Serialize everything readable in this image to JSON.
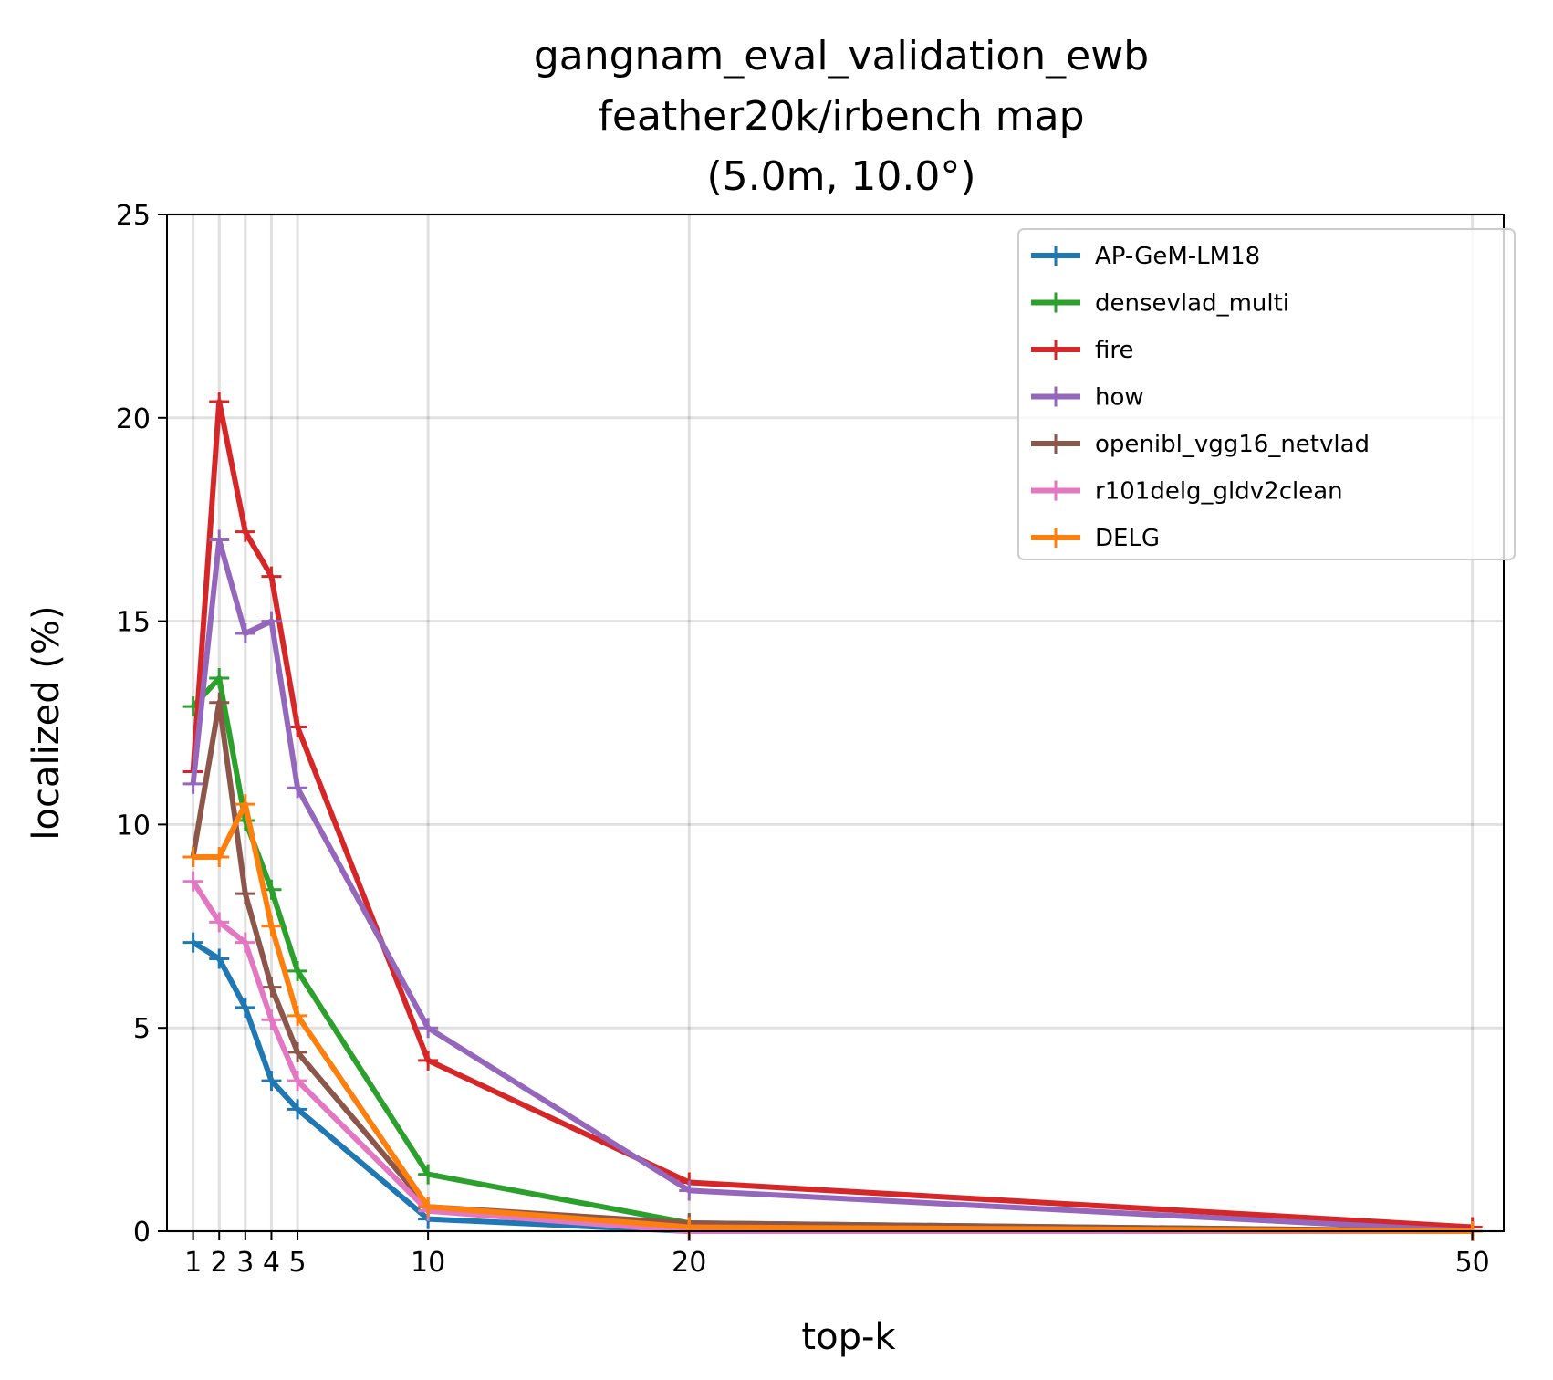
{
  "chart_data": {
    "type": "line",
    "title_lines": [
      "gangnam_eval_validation_ewb",
      "feather20k/irbench map",
      "(5.0m, 10.0°)"
    ],
    "xlabel": "top-k",
    "ylabel": "localized (%)",
    "x": [
      1,
      2,
      3,
      4,
      5,
      10,
      20,
      50
    ],
    "x_tick_labels": [
      "1",
      "2",
      "3",
      "4",
      "5",
      "10",
      "20",
      "50"
    ],
    "y_ticks": [
      0,
      5,
      10,
      15,
      20,
      25
    ],
    "y_tick_labels": [
      "0",
      "5",
      "10",
      "15",
      "20",
      "25"
    ],
    "xlim": [
      0,
      51.2
    ],
    "ylim": [
      0,
      25
    ],
    "grid": true,
    "legend_position": "upper right",
    "series": [
      {
        "name": "AP-GeM-LM18",
        "color": "#1f77b4",
        "values": [
          7.1,
          6.7,
          5.5,
          3.7,
          3.0,
          0.3,
          0.0,
          0.0
        ]
      },
      {
        "name": "densevlad_multi",
        "color": "#2ca02c",
        "values": [
          12.9,
          13.6,
          10.1,
          8.4,
          6.4,
          1.4,
          0.2,
          0.0
        ]
      },
      {
        "name": "fire",
        "color": "#d62728",
        "values": [
          11.3,
          20.4,
          17.2,
          16.1,
          12.4,
          4.2,
          1.2,
          0.1
        ]
      },
      {
        "name": "how",
        "color": "#9467bd",
        "values": [
          11.0,
          17.0,
          14.7,
          15.0,
          10.9,
          5.0,
          1.0,
          0.0
        ]
      },
      {
        "name": "openibl_vgg16_netvlad",
        "color": "#8c564b",
        "values": [
          9.2,
          13.0,
          8.3,
          6.0,
          4.4,
          0.6,
          0.2,
          0.0
        ]
      },
      {
        "name": "r101delg_gldv2clean",
        "color": "#e377c2",
        "values": [
          8.6,
          7.6,
          7.1,
          5.2,
          3.7,
          0.5,
          0.0,
          0.0
        ]
      },
      {
        "name": "DELG",
        "color": "#ff7f0e",
        "values": [
          9.2,
          9.2,
          10.5,
          7.5,
          5.3,
          0.6,
          0.1,
          0.0
        ]
      }
    ]
  }
}
